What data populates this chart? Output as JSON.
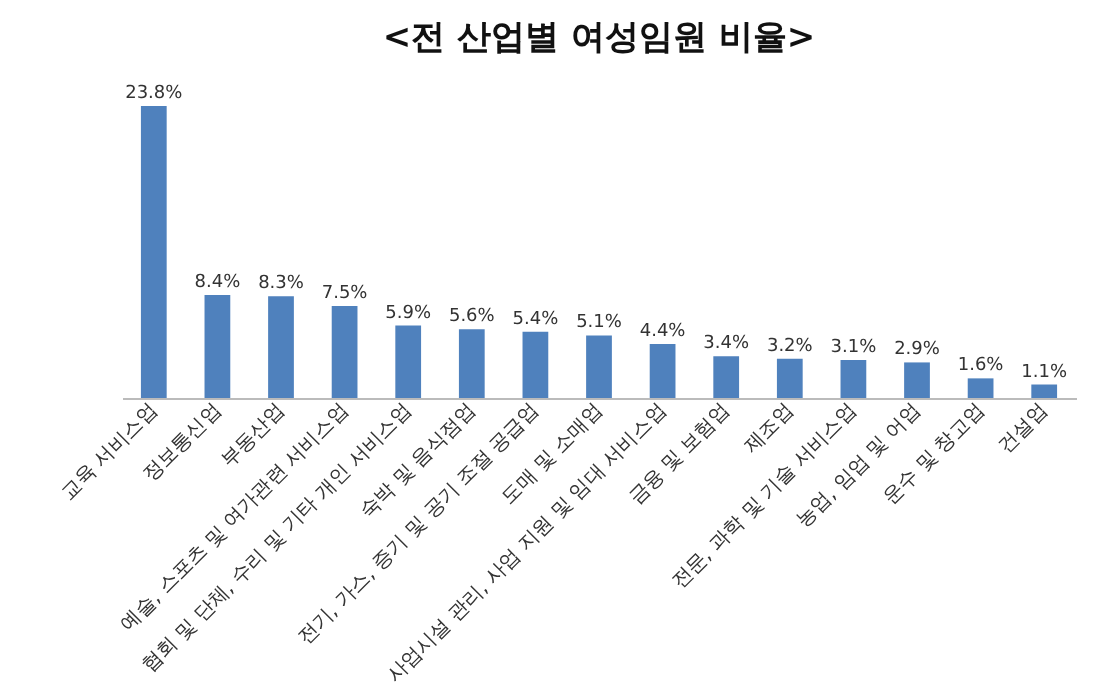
{
  "chart_data": {
    "type": "bar",
    "title": "<전 산업별 여성임원 비율>",
    "categories": [
      "교육 서비스업",
      "정보통신업",
      "부동산업",
      "예술, 스포츠 및 여가관련 서비스업",
      "협회 및 단체, 수리 및 기타 개인 서비스업",
      "숙박 및 음식점업",
      "전기, 가스, 증기 및 공기 조절 공급업",
      "도매 및 소매업",
      "사업시설 관리, 사업 지원 및 임대 서비스업",
      "금융 및 보험업",
      "제조업",
      "전문, 과학 및 기술 서비스업",
      "농업, 임업 및 어업",
      "운수 및 창고업",
      "건설업"
    ],
    "values": [
      23.8,
      8.4,
      8.3,
      7.5,
      5.9,
      5.6,
      5.4,
      5.1,
      4.4,
      3.4,
      3.2,
      3.1,
      2.9,
      1.6,
      1.1
    ],
    "value_labels": [
      "23.8%",
      "8.4%",
      "8.3%",
      "7.5%",
      "5.9%",
      "5.6%",
      "5.4%",
      "5.1%",
      "4.4%",
      "3.4%",
      "3.2%",
      "3.1%",
      "2.9%",
      "1.6%",
      "1.1%"
    ],
    "color": "#4f81bd"
  }
}
